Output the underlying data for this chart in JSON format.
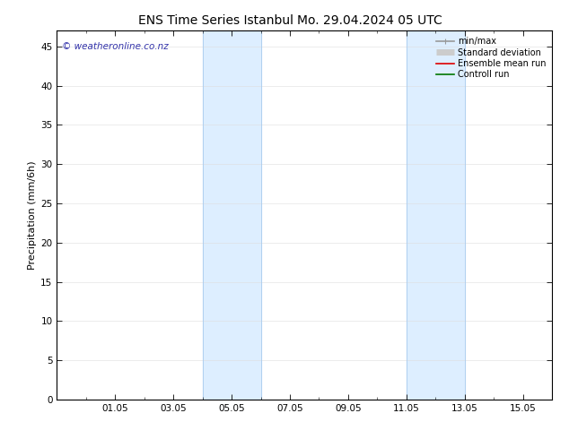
{
  "title_left": "ENS Time Series Istanbul",
  "title_right": "Mo. 29.04.2024 05 UTC",
  "ylabel": "Precipitation (mm/6h)",
  "ylim": [
    0,
    47
  ],
  "yticks": [
    0,
    5,
    10,
    15,
    20,
    25,
    30,
    35,
    40,
    45
  ],
  "xtick_labels": [
    "01.05",
    "03.05",
    "05.05",
    "07.05",
    "09.05",
    "11.05",
    "13.05",
    "15.05"
  ],
  "shade_color": "#ddeeff",
  "shade_edge_color": "#aaccee",
  "watermark_text": "© weatheronline.co.nz",
  "watermark_color": "#3333aa",
  "legend_items": [
    {
      "label": "min/max",
      "color": "#999999",
      "lw": 1.2,
      "style": "solid",
      "type": "errorbar"
    },
    {
      "label": "Standard deviation",
      "color": "#cccccc",
      "lw": 5,
      "style": "solid",
      "type": "thick"
    },
    {
      "label": "Ensemble mean run",
      "color": "#dd0000",
      "lw": 1.2,
      "style": "solid",
      "type": "line"
    },
    {
      "label": "Controll run",
      "color": "#007700",
      "lw": 1.2,
      "style": "solid",
      "type": "line"
    }
  ],
  "bg_color": "#ffffff",
  "border_color": "#000000",
  "tick_label_fontsize": 7.5,
  "axis_label_fontsize": 8,
  "title_fontsize": 10,
  "watermark_fontsize": 7.5,
  "legend_fontsize": 7
}
